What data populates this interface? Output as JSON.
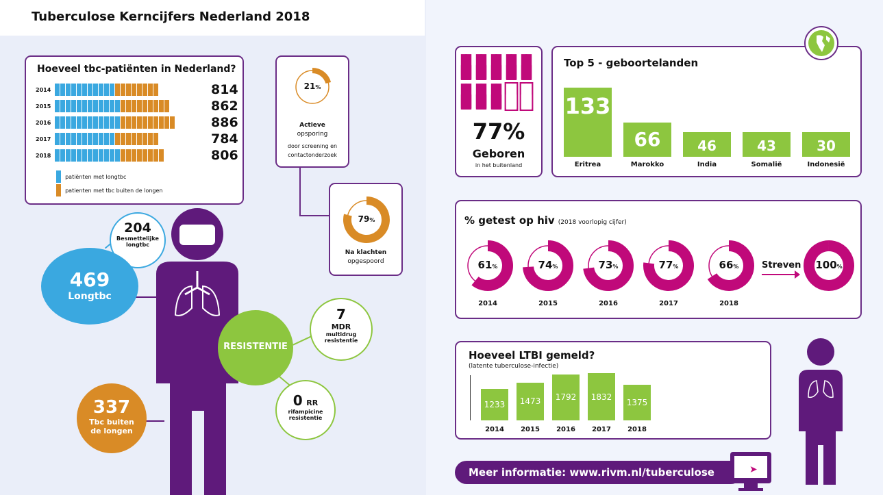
{
  "title": "Tuberculose Kerncijfers Nederland 2018",
  "colors": {
    "purple": "#5f1a7b",
    "blue": "#3aa8e0",
    "orange": "#d98b26",
    "green": "#8dc63f",
    "magenta": "#c0097a"
  },
  "patients": {
    "title": "Hoeveel tbc-patiënten in Nederland?",
    "rows": [
      {
        "year": "2014",
        "value": "814",
        "icons_longtbc": 11,
        "icons_extra": 8
      },
      {
        "year": "2015",
        "value": "862",
        "icons_longtbc": 12,
        "icons_extra": 9
      },
      {
        "year": "2016",
        "value": "886",
        "icons_longtbc": 12,
        "icons_extra": 10
      },
      {
        "year": "2017",
        "value": "784",
        "icons_longtbc": 11,
        "icons_extra": 8
      },
      {
        "year": "2018",
        "value": "806",
        "icons_longtbc": 12,
        "icons_extra": 8
      }
    ],
    "legend": [
      "patiënten met longtbc",
      "patienten met tbc buiten de longen"
    ]
  },
  "active": {
    "pct": "21",
    "unit": "%",
    "value": 21,
    "l1": "Actieve",
    "l2": "opsporing",
    "l3": "door screening en",
    "l4": "contactonderzoek"
  },
  "complaints": {
    "pct": "79",
    "unit": "%",
    "value": 79,
    "l1": "Na klachten",
    "l2": "opgespoord"
  },
  "figure": {
    "contagious_num": "204",
    "contagious_l1": "Besmettelijke",
    "contagious_l2": "longtbc",
    "lung_num": "469",
    "lung_label": "Longtbc",
    "extra_num": "337",
    "extra_l1": "Tbc buiten",
    "extra_l2": "de longen",
    "resist": "RESISTENTIE",
    "mdr_num": "7",
    "mdr_code": "MDR",
    "mdr_l1": "multidrug",
    "mdr_l2": "resistentie",
    "rr_num": "0",
    "rr_code": "RR",
    "rr_l1": "rifampicine",
    "rr_l2": "resistentie"
  },
  "foreign": {
    "pct": "77%",
    "l1": "Geboren",
    "l2": "in het buitenland",
    "filled": 8,
    "total": 10
  },
  "chart_data": [
    {
      "type": "bar",
      "title": "Top 5 - geboortelanden",
      "categories": [
        "Eritrea",
        "Marokko",
        "India",
        "Somalië",
        "Indonesië"
      ],
      "values": [
        133,
        66,
        46,
        43,
        30
      ],
      "labels": [
        "133",
        "66",
        "46",
        "43",
        "30"
      ]
    },
    {
      "type": "pie",
      "title": "% getest op hiv",
      "subtitle": "(2018 voorlopig cijfer)",
      "categories": [
        "2014",
        "2015",
        "2016",
        "2017",
        "2018"
      ],
      "values": [
        61,
        74,
        73,
        77,
        66
      ],
      "labels": [
        "61",
        "74",
        "73",
        "77",
        "66"
      ],
      "target_label": "Streven",
      "target_value": 100,
      "target_text": "100",
      "unit": "%"
    },
    {
      "type": "bar",
      "title": "Hoeveel LTBI gemeld?",
      "subtitle": "(latente tuberculose-infectie)",
      "categories": [
        "2014",
        "2015",
        "2016",
        "2017",
        "2018"
      ],
      "values": [
        1233,
        1473,
        1792,
        1832,
        1375
      ],
      "labels": [
        "1233",
        "1473",
        "1792",
        "1832",
        "1375"
      ]
    }
  ],
  "more_info": "Meer informatie: www.rivm.nl/tuberculose"
}
